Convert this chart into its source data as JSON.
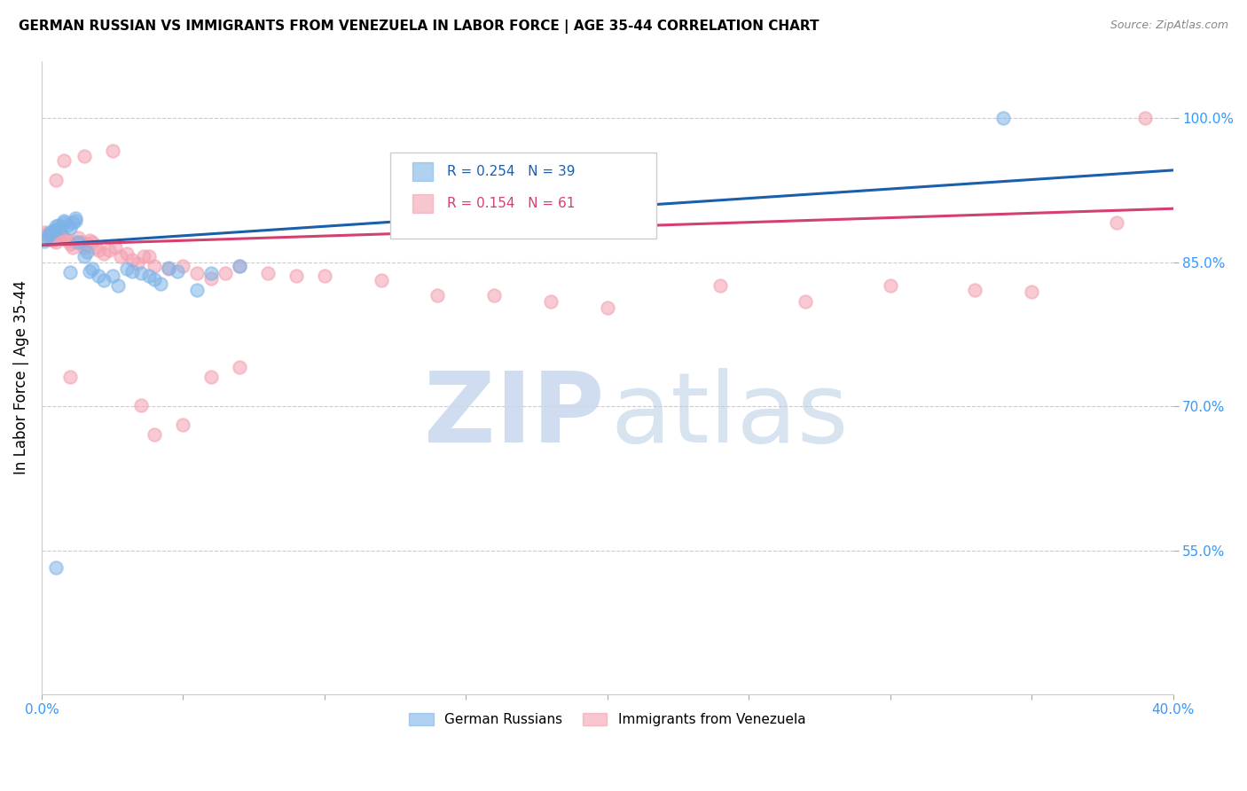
{
  "title": "GERMAN RUSSIAN VS IMMIGRANTS FROM VENEZUELA IN LABOR FORCE | AGE 35-44 CORRELATION CHART",
  "source": "Source: ZipAtlas.com",
  "ylabel": "In Labor Force | Age 35-44",
  "xlim": [
    0.0,
    0.4
  ],
  "ylim": [
    0.4,
    1.06
  ],
  "yticks": [
    0.55,
    0.7,
    0.85,
    1.0
  ],
  "xticks": [
    0.0,
    0.05,
    0.1,
    0.15,
    0.2,
    0.25,
    0.3,
    0.35,
    0.4
  ],
  "xtick_labels": [
    "0.0%",
    "",
    "",
    "",
    "",
    "",
    "",
    "",
    "40.0%"
  ],
  "ytick_labels": [
    "55.0%",
    "70.0%",
    "85.0%",
    "100.0%"
  ],
  "blue_R": 0.254,
  "blue_N": 39,
  "pink_R": 0.154,
  "pink_N": 61,
  "blue_color": "#7EB3E8",
  "pink_color": "#F4A0B0",
  "blue_line_color": "#1A5FAB",
  "pink_line_color": "#D44070",
  "tick_color": "#3399FF",
  "blue_x": [
    0.001,
    0.002,
    0.003,
    0.003,
    0.004,
    0.005,
    0.005,
    0.006,
    0.007,
    0.008,
    0.008,
    0.009,
    0.01,
    0.011,
    0.012,
    0.012,
    0.013,
    0.015,
    0.016,
    0.017,
    0.018,
    0.02,
    0.022,
    0.025,
    0.027,
    0.03,
    0.032,
    0.035,
    0.038,
    0.04,
    0.042,
    0.045,
    0.048,
    0.055,
    0.06,
    0.07,
    0.01,
    0.34,
    0.005
  ],
  "blue_y": [
    0.872,
    0.876,
    0.879,
    0.881,
    0.883,
    0.884,
    0.888,
    0.889,
    0.886,
    0.891,
    0.893,
    0.889,
    0.886,
    0.891,
    0.893,
    0.896,
    0.871,
    0.856,
    0.861,
    0.841,
    0.843,
    0.836,
    0.831,
    0.836,
    0.826,
    0.843,
    0.841,
    0.839,
    0.836,
    0.832,
    0.828,
    0.844,
    0.841,
    0.821,
    0.839,
    0.846,
    0.84,
    1.0,
    0.532
  ],
  "pink_x": [
    0.001,
    0.002,
    0.003,
    0.004,
    0.005,
    0.006,
    0.007,
    0.008,
    0.009,
    0.01,
    0.011,
    0.012,
    0.013,
    0.014,
    0.015,
    0.016,
    0.017,
    0.018,
    0.019,
    0.02,
    0.022,
    0.024,
    0.026,
    0.028,
    0.03,
    0.032,
    0.034,
    0.036,
    0.038,
    0.04,
    0.045,
    0.05,
    0.055,
    0.06,
    0.065,
    0.07,
    0.08,
    0.09,
    0.1,
    0.12,
    0.14,
    0.16,
    0.18,
    0.2,
    0.24,
    0.27,
    0.3,
    0.33,
    0.35,
    0.38,
    0.005,
    0.008,
    0.015,
    0.025,
    0.035,
    0.04,
    0.05,
    0.06,
    0.07,
    0.39,
    0.01
  ],
  "pink_y": [
    0.881,
    0.879,
    0.876,
    0.873,
    0.871,
    0.876,
    0.879,
    0.876,
    0.873,
    0.869,
    0.866,
    0.871,
    0.876,
    0.871,
    0.866,
    0.869,
    0.873,
    0.871,
    0.866,
    0.863,
    0.859,
    0.863,
    0.866,
    0.856,
    0.859,
    0.853,
    0.849,
    0.856,
    0.856,
    0.846,
    0.843,
    0.846,
    0.839,
    0.833,
    0.839,
    0.846,
    0.839,
    0.836,
    0.836,
    0.831,
    0.816,
    0.816,
    0.809,
    0.803,
    0.826,
    0.809,
    0.826,
    0.821,
    0.819,
    0.891,
    0.936,
    0.956,
    0.961,
    0.966,
    0.701,
    0.671,
    0.681,
    0.731,
    0.741,
    1.0,
    0.731
  ],
  "blue_trend_x": [
    0.0,
    0.4
  ],
  "blue_trend_y": [
    0.868,
    0.946
  ],
  "pink_trend_x": [
    0.0,
    0.4
  ],
  "pink_trend_y": [
    0.868,
    0.906
  ]
}
